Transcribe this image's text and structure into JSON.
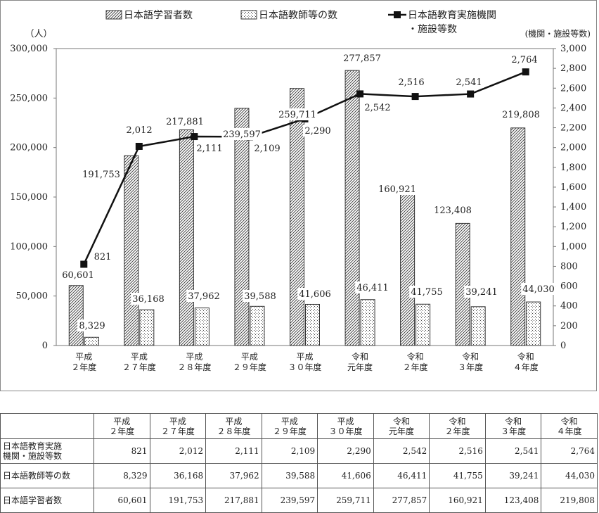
{
  "chart_data": {
    "type": "bar+line",
    "categories": [
      "平成\n２年度",
      "平成\n２７年度",
      "平成\n２８年度",
      "平成\n２９年度",
      "平成\n３０年度",
      "令和\n元年度",
      "令和\n２年度",
      "令和\n３年度",
      "令和\n４年度"
    ],
    "series": [
      {
        "name": "日本語学習者数",
        "type": "bar",
        "axis": "left",
        "pattern": "diagonal-hatch",
        "values": [
          60601,
          191753,
          217881,
          239597,
          259711,
          277857,
          160921,
          123408,
          219808
        ],
        "labels": [
          "60,601",
          "191,753",
          "217,881",
          "239,597",
          "259,711",
          "277,857",
          "160,921",
          "123,408",
          "219,808"
        ]
      },
      {
        "name": "日本語教師等の数",
        "type": "bar",
        "axis": "left",
        "pattern": "dots",
        "values": [
          8329,
          36168,
          37962,
          39588,
          41606,
          46411,
          41755,
          39241,
          44030
        ],
        "labels": [
          "8,329",
          "36,168",
          "37,962",
          "39,588",
          "41,606",
          "46,411",
          "41,755",
          "39,241",
          "44,030"
        ]
      },
      {
        "name": "日本語教育実施機関・施設等数",
        "type": "line",
        "axis": "right",
        "marker": "square",
        "values": [
          821,
          2012,
          2111,
          2109,
          2290,
          2542,
          2516,
          2541,
          2764
        ],
        "labels": [
          "821",
          "2,012",
          "2,111",
          "2,109",
          "2,290",
          "2,542",
          "2,516",
          "2,541",
          "2,764"
        ]
      }
    ],
    "left_axis": {
      "unit_label": "（人）",
      "min": 0,
      "max": 300000,
      "ticks": [
        0,
        50000,
        100000,
        150000,
        200000,
        250000,
        300000
      ],
      "tick_labels": [
        "0",
        "50,000",
        "100,000",
        "150,000",
        "200,000",
        "250,000",
        "300,000"
      ]
    },
    "right_axis": {
      "unit_label": "(機関・施設等数)",
      "min": 0,
      "max": 3000,
      "ticks": [
        0,
        200,
        400,
        600,
        800,
        1000,
        1200,
        1400,
        1600,
        1800,
        2000,
        2200,
        2400,
        2600,
        2800,
        3000
      ],
      "tick_labels": [
        "0",
        "200",
        "400",
        "600",
        "800",
        "1,000",
        "1,200",
        "1,400",
        "1,600",
        "1,800",
        "2,000",
        "2,200",
        "2,400",
        "2,600",
        "2,800",
        "3,000"
      ]
    },
    "legend": {
      "placement": "top",
      "items": [
        {
          "text": "日本語学習者数",
          "swatch": "diagonal-hatch"
        },
        {
          "text": "日本語教師等の数",
          "swatch": "dots"
        },
        {
          "text": "日本語教育実施機関\n・施設等数",
          "swatch": "line-square"
        }
      ]
    },
    "grid": false
  },
  "table": {
    "headers": [
      "",
      "平成\n２年度",
      "平成\n２７年度",
      "平成\n２８年度",
      "平成\n２９年度",
      "平成\n３０年度",
      "令和\n元年度",
      "令和\n２年度",
      "令和\n３年度",
      "令和\n４年度"
    ],
    "rows": [
      {
        "label": "日本語教育実施\n機関・施設等数",
        "cells": [
          "821",
          "2,012",
          "2,111",
          "2,109",
          "2,290",
          "2,542",
          "2,516",
          "2,541",
          "2,764"
        ]
      },
      {
        "label": "日本語教師等の数",
        "cells": [
          "8,329",
          "36,168",
          "37,962",
          "39,588",
          "41,606",
          "46,411",
          "41,755",
          "39,241",
          "44,030"
        ]
      },
      {
        "label": "日本語学習者数",
        "cells": [
          "60,601",
          "191,753",
          "217,881",
          "239,597",
          "259,711",
          "277,857",
          "160,921",
          "123,408",
          "219,808"
        ]
      }
    ]
  }
}
